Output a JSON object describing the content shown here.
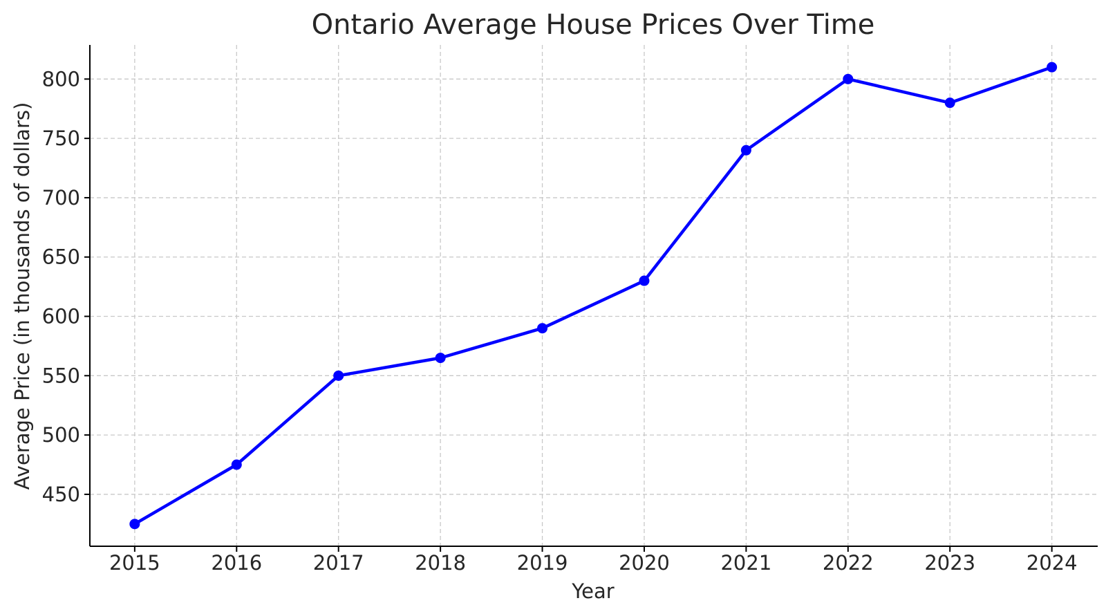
{
  "chart_data": {
    "type": "line",
    "title": "Ontario Average House Prices Over Time",
    "xlabel": "Year",
    "ylabel": "Average Price (in thousands of dollars)",
    "x": [
      2015,
      2016,
      2017,
      2018,
      2019,
      2020,
      2021,
      2022,
      2023,
      2024
    ],
    "x_tick_labels": [
      "2015",
      "2016",
      "2017",
      "2018",
      "2019",
      "2020",
      "2021",
      "2022",
      "2023",
      "2024"
    ],
    "y_ticks": [
      450,
      500,
      550,
      600,
      650,
      700,
      750,
      800
    ],
    "y_tick_labels": [
      "450",
      "500",
      "550",
      "600",
      "650",
      "700",
      "750",
      "800"
    ],
    "xlim": [
      2014.56,
      2024.45
    ],
    "ylim": [
      406.25,
      828.75
    ],
    "series": [
      {
        "values": [
          425,
          475,
          550,
          565,
          590,
          630,
          740,
          800,
          780,
          810
        ],
        "color": "#0000ff",
        "marker": "circle"
      }
    ],
    "grid": true,
    "legend": false
  }
}
